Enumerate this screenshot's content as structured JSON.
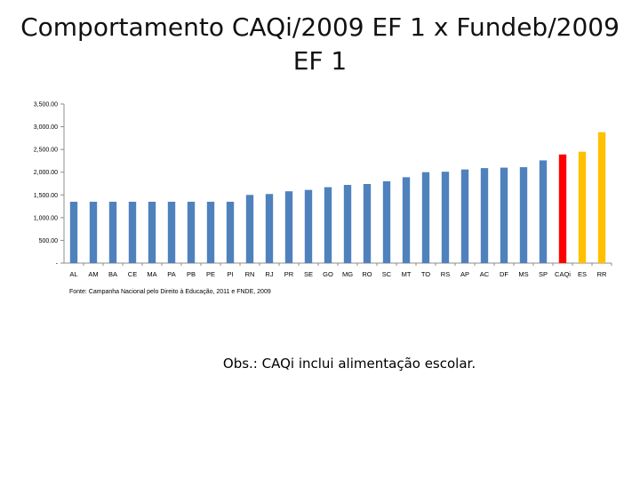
{
  "slide": {
    "title_line1": "Comportamento CAQi/2009 EF 1 x Fundeb/2009",
    "title_line2": "EF 1",
    "note": "Obs.: CAQi inclui alimentação escolar."
  },
  "chart_data": {
    "type": "bar",
    "title": "Comportamento CAQi/2009 EF 1 x Fundeb/2009 EF 1",
    "xlabel": "",
    "ylabel": "",
    "ylim": [
      0,
      3500
    ],
    "ytick_values": [
      0,
      500,
      1000,
      1500,
      2000,
      2500,
      3000,
      3500
    ],
    "ytick_labels": [
      "-",
      "500.00",
      "1,000.00",
      "1,500.00",
      "2,000.00",
      "2,500.00",
      "3,000.00",
      "3,500.00"
    ],
    "categories": [
      "AL",
      "AM",
      "BA",
      "CE",
      "MA",
      "PA",
      "PB",
      "PE",
      "PI",
      "RN",
      "RJ",
      "PR",
      "SE",
      "GO",
      "MG",
      "RO",
      "SC",
      "MT",
      "TO",
      "RS",
      "AP",
      "AC",
      "DF",
      "MS",
      "SP",
      "CAQi",
      "ES",
      "RR"
    ],
    "values": [
      1350,
      1350,
      1350,
      1350,
      1350,
      1350,
      1350,
      1350,
      1350,
      1500,
      1520,
      1580,
      1610,
      1670,
      1720,
      1740,
      1800,
      1890,
      2000,
      2010,
      2060,
      2090,
      2100,
      2110,
      2260,
      2390,
      2450,
      2880
    ],
    "colors": [
      "#4f81bd",
      "#4f81bd",
      "#4f81bd",
      "#4f81bd",
      "#4f81bd",
      "#4f81bd",
      "#4f81bd",
      "#4f81bd",
      "#4f81bd",
      "#4f81bd",
      "#4f81bd",
      "#4f81bd",
      "#4f81bd",
      "#4f81bd",
      "#4f81bd",
      "#4f81bd",
      "#4f81bd",
      "#4f81bd",
      "#4f81bd",
      "#4f81bd",
      "#4f81bd",
      "#4f81bd",
      "#4f81bd",
      "#4f81bd",
      "#4f81bd",
      "#ff0000",
      "#ffc000",
      "#ffc000"
    ],
    "grid": false,
    "legend": "none",
    "source": "Fonte: Campanha Nacional pelo Direito à Educação, 2011 e FNDE, 2009"
  }
}
